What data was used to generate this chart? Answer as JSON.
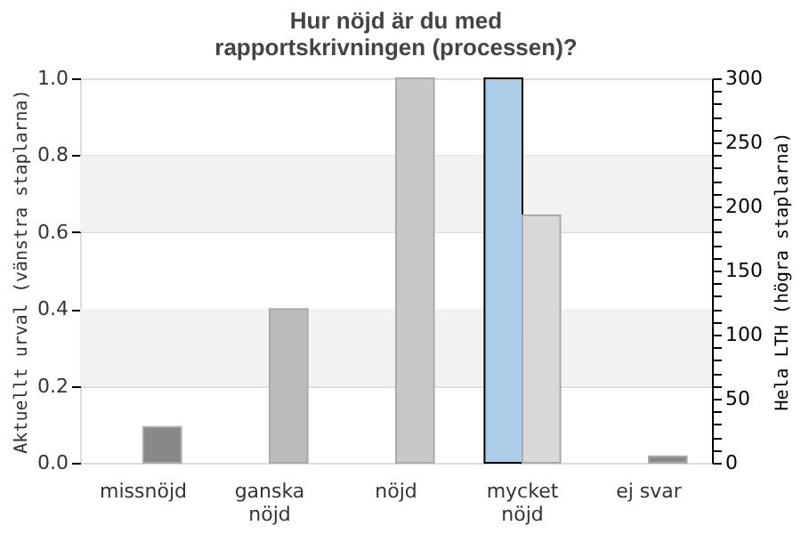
{
  "chart_data": {
    "type": "bar",
    "title": "Hur nöjd är du med\nrapportskrivningen (processen)?",
    "categories": [
      "missnöjd",
      "ganska\nnöjd",
      "nöjd",
      "mycket\nnöjd",
      "ej svar"
    ],
    "series": [
      {
        "color": "#abcde8",
        "values": [
          null,
          null,
          null,
          1.0,
          null
        ]
      },
      {
        "axis": "y2",
        "colors": [
          "#888888",
          "#bbbbbb",
          "#c8c8c8",
          "#d8d8d8",
          "#888888"
        ],
        "values": [
          28,
          120,
          300,
          193,
          5
        ]
      }
    ],
    "ylabel": "Aktuellt urval (vänstra staplarna)",
    "y2label": "Hela LTH (högra staplarna)",
    "ylim": [
      0,
      1
    ],
    "yticks": [
      {
        "value": 0,
        "label": "0.0"
      },
      0.2,
      0.4,
      0.6,
      0.8,
      {
        "value": 1,
        "label": "1.0"
      }
    ],
    "y2lim": [
      0,
      300
    ],
    "y2ticks": [
      0,
      {
        "value": 10,
        "label": null
      },
      {
        "value": 20,
        "label": null
      },
      {
        "value": 30,
        "label": null
      },
      {
        "value": 40,
        "label": null
      },
      50,
      {
        "value": 60,
        "label": null
      },
      {
        "value": 70,
        "label": null
      },
      {
        "value": 80,
        "label": null
      },
      {
        "value": 90,
        "label": null
      },
      100,
      {
        "value": 110,
        "label": null
      },
      {
        "value": 120,
        "label": null
      },
      {
        "value": 130,
        "label": null
      },
      {
        "value": 140,
        "label": null
      },
      150,
      {
        "value": 160,
        "label": null
      },
      {
        "value": 170,
        "label": null
      },
      {
        "value": 180,
        "label": null
      },
      {
        "value": 190,
        "label": null
      },
      200,
      {
        "value": 210,
        "label": null
      },
      {
        "value": 220,
        "label": null
      },
      {
        "value": 230,
        "label": null
      },
      {
        "value": 240,
        "label": null
      },
      250,
      {
        "value": 260,
        "label": null
      },
      {
        "value": 270,
        "label": null
      },
      {
        "value": 280,
        "label": null
      },
      {
        "value": 290,
        "label": null
      },
      300
    ],
    "grid": "y",
    "bands": [
      {
        "axis": "y",
        "from": 0.2,
        "to": 0.4,
        "color": "#f2f2f2"
      },
      {
        "axis": "y",
        "from": 0.6,
        "to": 0.8,
        "color": "#f2f2f2"
      }
    ]
  }
}
